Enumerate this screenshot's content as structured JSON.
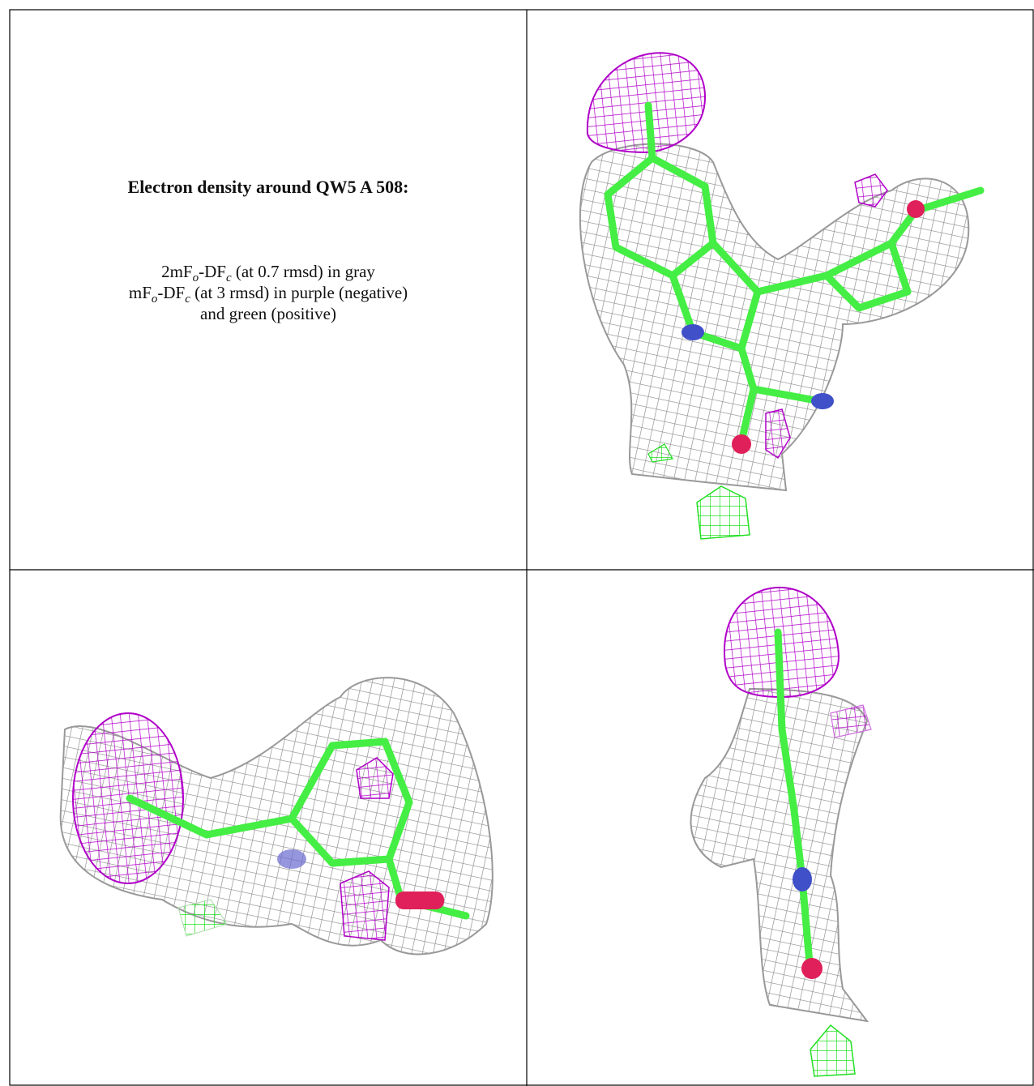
{
  "title": "Electron density around QW5 A 508:",
  "legend": [
    {
      "parts": [
        "2mF",
        "o",
        "-DF",
        "c",
        " (at 0.7 rmsd) in gray"
      ]
    },
    {
      "parts": [
        "mF",
        "o",
        "-DF",
        "c",
        " (at 3 rmsd) in purple (negative)"
      ]
    },
    {
      "parts": [
        "and green (positive)"
      ]
    }
  ]
}
